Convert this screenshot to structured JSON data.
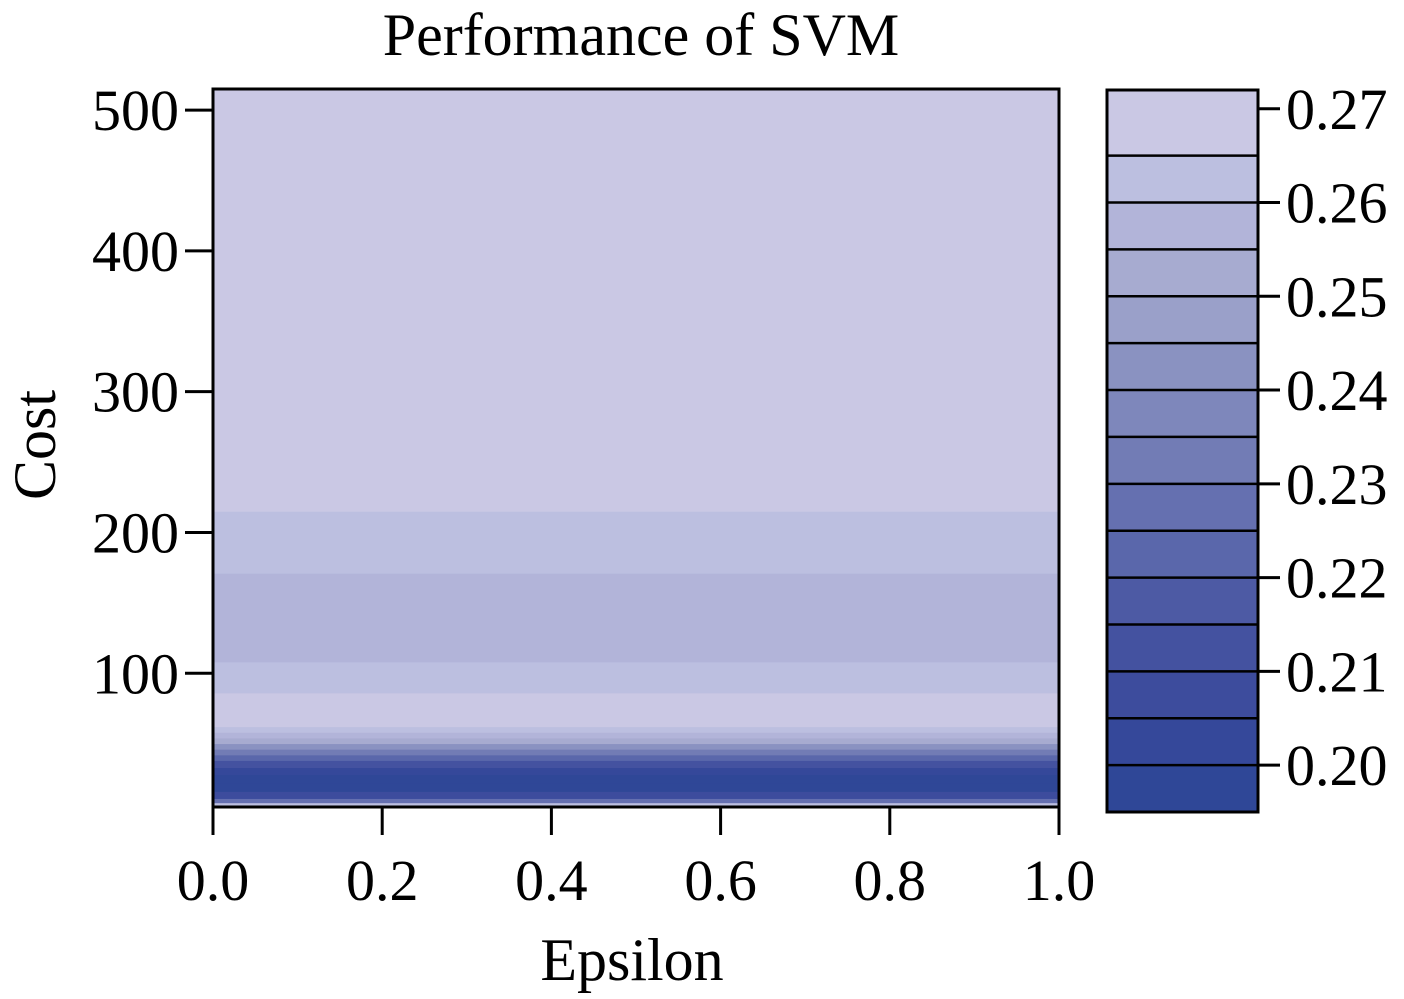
{
  "chart_data": {
    "type": "heatmap",
    "title": "Performance of SVM",
    "xlabel": "Epsilon",
    "ylabel": "Cost",
    "xlim": [
      0.0,
      1.0
    ],
    "ylim": [
      5,
      515
    ],
    "x_ticks": [
      "0.0",
      "0.2",
      "0.4",
      "0.6",
      "0.8",
      "1.0"
    ],
    "y_ticks": [
      "100",
      "200",
      "300",
      "400",
      "500"
    ],
    "colorbar": {
      "range": [
        0.195,
        0.272
      ],
      "ticks": [
        "0.20",
        "0.21",
        "0.22",
        "0.23",
        "0.24",
        "0.25",
        "0.26",
        "0.27"
      ],
      "levels": [
        0.195,
        0.2,
        0.205,
        0.21,
        0.215,
        0.22,
        0.225,
        0.23,
        0.235,
        0.24,
        0.245,
        0.25,
        0.255,
        0.26,
        0.265,
        0.272
      ],
      "colors": [
        "#2f4797",
        "#35489a",
        "#3d4c9d",
        "#4452a0",
        "#4d5aa4",
        "#5a67ab",
        "#6570b0",
        "#727cb5",
        "#7e87bb",
        "#8a92c1",
        "#9aa0c9",
        "#a7abd0",
        "#b2b4d9",
        "#bcbfe0",
        "#cac8e4"
      ]
    },
    "note_rows": "performance is constant along epsilon; varies only with cost",
    "rows": [
      {
        "cost": [
          5,
          8
        ],
        "level": 13
      },
      {
        "cost": [
          8,
          11
        ],
        "level": 6
      },
      {
        "cost": [
          11,
          16
        ],
        "level": 2
      },
      {
        "cost": [
          16,
          22
        ],
        "level": 0
      },
      {
        "cost": [
          22,
          28
        ],
        "level": 0
      },
      {
        "cost": [
          28,
          33
        ],
        "level": 1
      },
      {
        "cost": [
          33,
          38
        ],
        "level": 3
      },
      {
        "cost": [
          38,
          42
        ],
        "level": 5
      },
      {
        "cost": [
          42,
          46
        ],
        "level": 7
      },
      {
        "cost": [
          46,
          50
        ],
        "level": 9
      },
      {
        "cost": [
          50,
          54
        ],
        "level": 11
      },
      {
        "cost": [
          54,
          58
        ],
        "level": 12
      },
      {
        "cost": [
          58,
          62
        ],
        "level": 13
      },
      {
        "cost": [
          62,
          86
        ],
        "level": 14
      },
      {
        "cost": [
          86,
          108
        ],
        "level": 13
      },
      {
        "cost": [
          108,
          171
        ],
        "level": 12
      },
      {
        "cost": [
          171,
          215
        ],
        "level": 13
      },
      {
        "cost": [
          215,
          515
        ],
        "level": 14
      }
    ]
  }
}
